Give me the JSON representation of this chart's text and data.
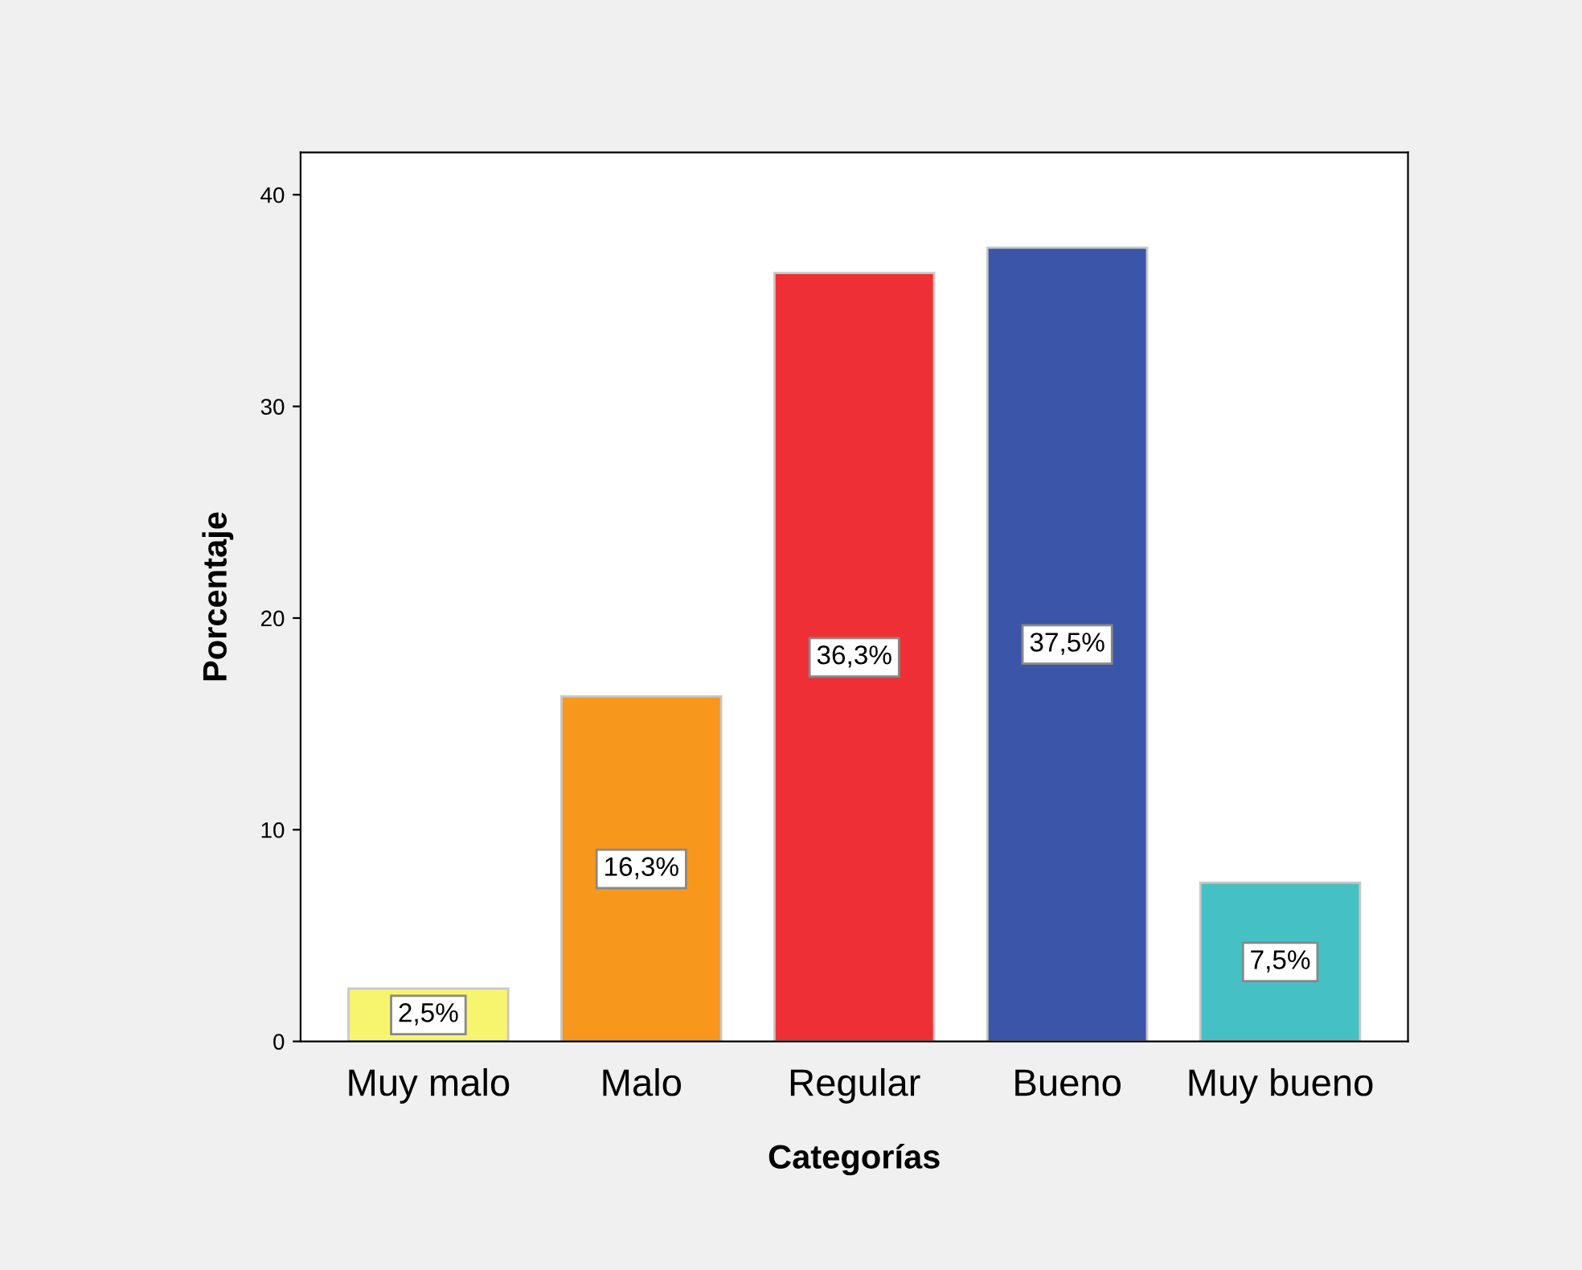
{
  "chart_data": {
    "type": "bar",
    "xlabel": "Categorías",
    "ylabel": "Porcentaje",
    "categories": [
      "Muy malo",
      "Malo",
      "Regular",
      "Bueno",
      "Muy bueno"
    ],
    "values": [
      2.5,
      16.3,
      36.3,
      37.5,
      7.5
    ],
    "colors": [
      "#f7f56e",
      "#f7981d",
      "#ee3036",
      "#3b56a8",
      "#45c1c6"
    ],
    "value_labels": [
      "2,5%",
      "16,3%",
      "36,3%",
      "37,5%",
      "7,5%"
    ],
    "ylim": [
      0,
      42
    ],
    "yticks": [
      0,
      10,
      20,
      30,
      40
    ],
    "grid": false,
    "legend": false
  }
}
